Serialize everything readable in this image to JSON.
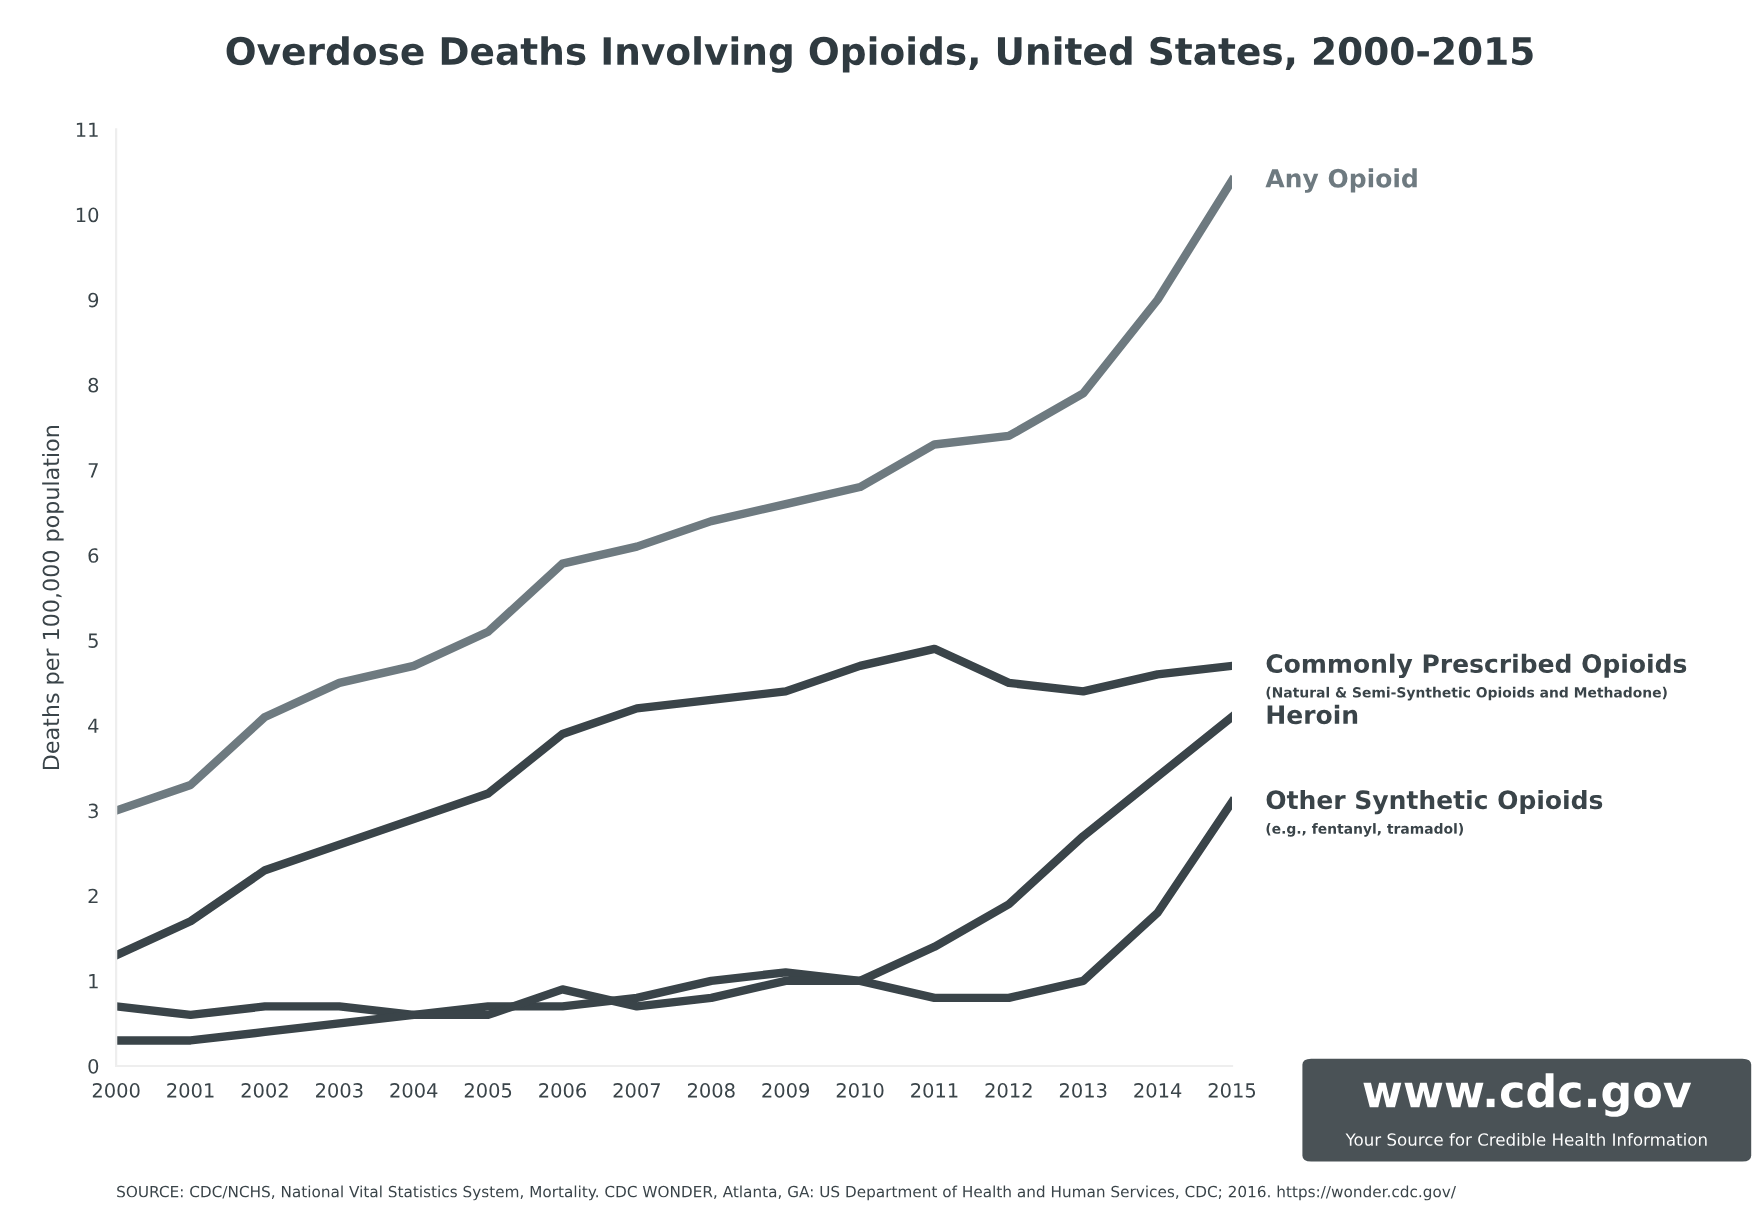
{
  "chart_data": {
    "type": "line",
    "title": "Overdose Deaths Involving Opioids, United States, 2000-2015",
    "ylabel": "Deaths per 100,000 population",
    "x": [
      2000,
      2001,
      2002,
      2003,
      2004,
      2005,
      2006,
      2007,
      2008,
      2009,
      2010,
      2011,
      2012,
      2013,
      2014,
      2015
    ],
    "xlim": [
      2000,
      2015
    ],
    "xticks": [
      2000,
      2001,
      2002,
      2003,
      2004,
      2005,
      2006,
      2007,
      2008,
      2009,
      2010,
      2011,
      2012,
      2013,
      2014,
      2015
    ],
    "ylim": [
      0,
      11
    ],
    "yticks": [
      0,
      1,
      2,
      3,
      4,
      5,
      6,
      7,
      8,
      9,
      10,
      11
    ],
    "grid": false,
    "legend": false,
    "marker": "none",
    "line_style": "solid",
    "series": [
      {
        "name": "Any Opioid",
        "color": "#6e7a80",
        "values": [
          3.0,
          3.3,
          4.1,
          4.5,
          4.7,
          5.1,
          5.9,
          6.1,
          6.4,
          6.6,
          6.8,
          7.3,
          7.4,
          7.9,
          9.0,
          10.4
        ]
      },
      {
        "name": "Commonly Prescribed Opioids",
        "color": "#3a4449",
        "values": [
          1.3,
          1.7,
          2.3,
          2.6,
          2.9,
          3.2,
          3.9,
          4.2,
          4.3,
          4.4,
          4.7,
          4.9,
          4.5,
          4.4,
          4.6,
          4.7
        ]
      },
      {
        "name": "Heroin",
        "color": "#3a4449",
        "values": [
          0.7,
          0.6,
          0.7,
          0.7,
          0.6,
          0.7,
          0.7,
          0.8,
          1.0,
          1.1,
          1.0,
          1.4,
          1.9,
          2.7,
          3.4,
          4.1
        ]
      },
      {
        "name": "Other Synthetic Opioids",
        "color": "#3a4449",
        "values": [
          0.3,
          0.3,
          0.4,
          0.5,
          0.6,
          0.6,
          0.9,
          0.7,
          0.8,
          1.0,
          1.0,
          0.8,
          0.8,
          1.0,
          1.8,
          3.1
        ]
      }
    ],
    "annotations": [
      {
        "text": "(Natural & Semi-Synthetic Opioids and Methadone)",
        "x": 2015,
        "y": 4.7
      },
      {
        "text": "(e.g., fentanyl, tramadol)",
        "x": 2015,
        "y": 3.1
      },
      "SOURCE: CDC/NCHS, National Vital Statistics System, Mortality. CDC WONDER, Atlanta, GA: US Department of Health and Human Services, CDC; 2016. https://wonder.cdc.gov/",
      "www.cdc.gov",
      "Your Source for Credible Health Information"
    ]
  }
}
